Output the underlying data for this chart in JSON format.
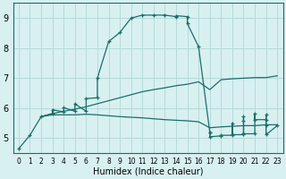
{
  "xlabel": "Humidex (Indice chaleur)",
  "bg_color": "#d8f0f0",
  "grid_color": "#b8dada",
  "line_color": "#1a6e6a",
  "xlim": [
    -0.5,
    23.5
  ],
  "ylim": [
    4.5,
    9.5
  ],
  "xticks": [
    0,
    1,
    2,
    3,
    4,
    5,
    6,
    7,
    8,
    9,
    10,
    11,
    12,
    13,
    14,
    15,
    16,
    17,
    18,
    19,
    20,
    21,
    22,
    23
  ],
  "yticks": [
    5,
    6,
    7,
    8,
    9
  ],
  "curve_x": [
    0,
    1,
    2,
    3,
    3,
    4,
    4,
    5,
    5,
    6,
    6,
    7,
    7,
    8,
    9,
    10,
    11,
    12,
    13,
    14,
    14,
    15,
    15,
    16,
    17
  ],
  "curve_y": [
    4.65,
    5.1,
    5.72,
    5.82,
    5.95,
    5.88,
    6.02,
    5.9,
    6.15,
    5.9,
    6.32,
    6.35,
    7.0,
    8.22,
    8.52,
    9.0,
    9.1,
    9.1,
    9.1,
    9.05,
    9.08,
    9.05,
    8.82,
    8.05,
    5.2
  ],
  "top_line_x": [
    2,
    3,
    4,
    5,
    6,
    7,
    8,
    9,
    10,
    11,
    12,
    13,
    14,
    15,
    16,
    17,
    18,
    19,
    20,
    21,
    22,
    23
  ],
  "top_line_y": [
    5.72,
    5.82,
    5.9,
    5.97,
    6.05,
    6.15,
    6.25,
    6.35,
    6.45,
    6.55,
    6.62,
    6.68,
    6.75,
    6.8,
    6.88,
    6.62,
    6.95,
    6.98,
    7.0,
    7.02,
    7.02,
    7.08
  ],
  "bot_line_x": [
    2,
    3,
    4,
    5,
    6,
    7,
    8,
    9,
    10,
    11,
    12,
    13,
    14,
    15,
    16,
    17,
    18,
    19,
    20,
    21,
    22,
    23
  ],
  "bot_line_y": [
    5.72,
    5.78,
    5.78,
    5.78,
    5.8,
    5.78,
    5.75,
    5.72,
    5.7,
    5.68,
    5.65,
    5.62,
    5.6,
    5.58,
    5.55,
    5.35,
    5.38,
    5.4,
    5.42,
    5.42,
    5.45,
    5.45
  ],
  "spike_x": [
    17,
    17,
    18,
    18,
    19,
    19,
    19,
    20,
    20,
    20,
    20,
    21,
    21,
    21,
    22,
    22,
    22,
    22,
    23
  ],
  "spike_y": [
    5.2,
    5.05,
    5.08,
    5.1,
    5.1,
    5.5,
    5.12,
    5.12,
    5.72,
    5.58,
    5.15,
    5.15,
    5.82,
    5.62,
    5.62,
    5.78,
    5.42,
    5.12,
    5.42
  ],
  "marker": "+"
}
